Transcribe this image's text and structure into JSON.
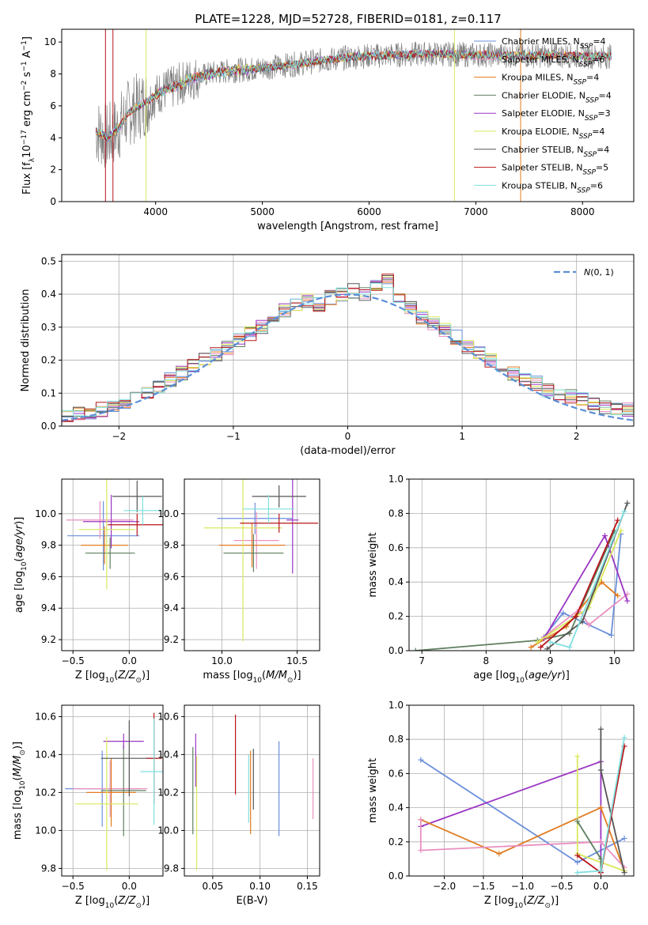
{
  "figure": {
    "title": "PLATE=1228, MJD=52728, FIBERID=0181, z=0.117"
  },
  "colors": {
    "c1": "#6a8fdb",
    "c2": "#e07b1f",
    "c3": "#e98fc0",
    "c4": "#5f7f5f",
    "c5": "#9b36c3",
    "c6": "#d9e85c",
    "c7": "#555555",
    "c8": "#b8141a",
    "c9": "#7fe0df",
    "grid": "#b0b0b0",
    "gray": "#808080",
    "dash": "#5b8fd6"
  },
  "chart_data": [
    {
      "type": "line",
      "id": "spectrum",
      "xlabel": "wavelength [Angstrom, rest frame]",
      "ylabel": "Flux [f_λ10^-17 erg cm^-2 s^-1 A^-1]",
      "xlim": [
        3120,
        8480
      ],
      "ylim": [
        0,
        10.8
      ],
      "xticks": [
        4000,
        5000,
        6000,
        7000,
        8000
      ],
      "yticks": [
        0,
        2,
        4,
        6,
        8,
        10
      ],
      "grid": false,
      "legend_position": "right",
      "continuum": {
        "x": [
          3450,
          3550,
          3650,
          3750,
          3850,
          3950,
          4050,
          4150,
          4300,
          4500,
          4700,
          4900,
          5100,
          5300,
          5500,
          5700,
          5900,
          6100,
          6300,
          6500,
          6700,
          6900,
          7100,
          7300,
          7500,
          7700,
          7900,
          8100,
          8250
        ],
        "y": [
          4.4,
          4.0,
          4.6,
          5.6,
          6.0,
          6.4,
          6.9,
          7.1,
          7.6,
          8.0,
          8.2,
          8.3,
          8.45,
          8.6,
          8.8,
          8.95,
          9.1,
          9.15,
          9.2,
          9.25,
          9.25,
          9.2,
          9.2,
          9.15,
          9.15,
          9.15,
          9.15,
          9.1,
          9.1
        ]
      },
      "series": [
        {
          "name": "Chabrier MILES",
          "nssp": "4",
          "color_key": "c1"
        },
        {
          "name": "Salpeter MILES",
          "nssp": "6",
          "color_key": "c3"
        },
        {
          "name": "Kroupa MILES",
          "nssp": "4",
          "color_key": "c2"
        },
        {
          "name": "Chabrier ELODIE",
          "nssp": "4",
          "color_key": "c4"
        },
        {
          "name": "Salpeter ELODIE",
          "nssp": "3",
          "color_key": "c5"
        },
        {
          "name": "Kroupa ELODIE",
          "nssp": "4",
          "color_key": "c6"
        },
        {
          "name": "Chabrier STELIB",
          "nssp": "4",
          "color_key": "c7"
        },
        {
          "name": "Salpeter STELIB",
          "nssp": "5",
          "color_key": "c8"
        },
        {
          "name": "Kroupa STELIB",
          "nssp": "6",
          "color_key": "c9"
        }
      ]
    },
    {
      "type": "line",
      "id": "residuals",
      "xlabel": "(data-model)/error",
      "ylabel": "Normed distribution",
      "xlim": [
        -2.5,
        2.5
      ],
      "ylim": [
        0,
        0.52
      ],
      "xticks": [
        -2,
        -1,
        0,
        1,
        2
      ],
      "yticks": [
        0.0,
        0.1,
        0.2,
        0.3,
        0.4,
        0.5
      ],
      "grid": true,
      "legend_position": "top-right",
      "reference_label": "N(0,1)",
      "histogram_centers": [
        -2.45,
        -2.35,
        -2.25,
        -2.15,
        -2.05,
        -1.95,
        -1.85,
        -1.75,
        -1.65,
        -1.55,
        -1.45,
        -1.35,
        -1.25,
        -1.15,
        -1.05,
        -0.95,
        -0.85,
        -0.75,
        -0.65,
        -0.55,
        -0.45,
        -0.35,
        -0.25,
        -0.15,
        -0.05,
        0.05,
        0.15,
        0.25,
        0.35,
        0.45,
        0.55,
        0.65,
        0.75,
        0.85,
        0.95,
        1.05,
        1.15,
        1.25,
        1.35,
        1.45,
        1.55,
        1.65,
        1.75,
        1.85,
        1.95,
        2.05,
        2.15,
        2.25,
        2.35,
        2.45
      ],
      "histogram_mean": [
        0.03,
        0.04,
        0.035,
        0.05,
        0.06,
        0.075,
        0.09,
        0.1,
        0.12,
        0.14,
        0.16,
        0.18,
        0.2,
        0.22,
        0.235,
        0.26,
        0.28,
        0.3,
        0.32,
        0.35,
        0.37,
        0.38,
        0.37,
        0.39,
        0.4,
        0.41,
        0.4,
        0.42,
        0.44,
        0.38,
        0.36,
        0.33,
        0.31,
        0.29,
        0.27,
        0.24,
        0.22,
        0.2,
        0.18,
        0.16,
        0.14,
        0.13,
        0.11,
        0.1,
        0.09,
        0.08,
        0.07,
        0.06,
        0.055,
        0.05
      ]
    },
    {
      "type": "scatter",
      "id": "age-vs-z",
      "xlabel": "Z [log10(Z/Z⊙)]",
      "ylabel": "age [log10(age/yr)]",
      "xlim": [
        -0.6,
        0.3
      ],
      "ylim": [
        9.13,
        10.22
      ],
      "xticks": [
        -0.5,
        0.0
      ],
      "yticks": [
        9.2,
        9.4,
        9.6,
        9.8,
        10.0
      ],
      "grid": true,
      "points": [
        {
          "x": -0.23,
          "y": 9.86,
          "xe": 0.32,
          "ye": 0.22,
          "color_key": "c1"
        },
        {
          "x": -0.26,
          "y": 9.96,
          "xe": 0.3,
          "ye": 0.12,
          "color_key": "c3"
        },
        {
          "x": -0.22,
          "y": 9.8,
          "xe": 0.21,
          "ye": 0.12,
          "color_key": "c2"
        },
        {
          "x": -0.17,
          "y": 9.75,
          "xe": 0.22,
          "ye": 0.1,
          "color_key": "c4"
        },
        {
          "x": -0.16,
          "y": 9.95,
          "xe": 0.25,
          "ye": 0.17,
          "color_key": "c5"
        },
        {
          "x": -0.2,
          "y": 9.9,
          "xe": 0.25,
          "ye": 0.38,
          "color_key": "c6"
        },
        {
          "x": 0.07,
          "y": 10.11,
          "xe": 0.22,
          "ye": 0.1,
          "color_key": "c7"
        },
        {
          "x": 0.07,
          "y": 9.93,
          "xe": 0.26,
          "ye": 0.07,
          "color_key": "c8"
        },
        {
          "x": 0.12,
          "y": 10.02,
          "xe": 0.17,
          "ye": 0.09,
          "color_key": "c9"
        }
      ]
    },
    {
      "type": "scatter",
      "id": "age-vs-mass",
      "xlabel": "mass [log10(M/M⊙)]",
      "ylabel": "",
      "xlim": [
        9.75,
        10.65
      ],
      "ylim": [
        9.13,
        10.22
      ],
      "xticks": [
        10.0,
        10.5
      ],
      "yticks": [
        9.2,
        9.4,
        9.6,
        9.8,
        10.0
      ],
      "grid": true,
      "points": [
        {
          "x": 10.22,
          "y": 9.97,
          "xe": 0.25,
          "ye": 0.1,
          "color_key": "c1"
        },
        {
          "x": 10.23,
          "y": 9.83,
          "xe": 0.15,
          "ye": 0.18,
          "color_key": "c3"
        },
        {
          "x": 10.2,
          "y": 9.8,
          "xe": 0.22,
          "ye": 0.14,
          "color_key": "c2"
        },
        {
          "x": 10.21,
          "y": 9.75,
          "xe": 0.2,
          "ye": 0.12,
          "color_key": "c4"
        },
        {
          "x": 10.47,
          "y": 9.96,
          "xe": 0.04,
          "ye": 0.34,
          "color_key": "c5"
        },
        {
          "x": 10.14,
          "y": 9.91,
          "xe": 0.26,
          "ye": 0.72,
          "color_key": "c6"
        },
        {
          "x": 10.38,
          "y": 10.11,
          "xe": 0.18,
          "ye": 0.07,
          "color_key": "c7"
        },
        {
          "x": 10.38,
          "y": 9.94,
          "xe": 0.26,
          "ye": 0.06,
          "color_key": "c8"
        },
        {
          "x": 10.31,
          "y": 10.03,
          "xe": 0.17,
          "ye": 0.09,
          "color_key": "c9"
        }
      ]
    },
    {
      "type": "line",
      "id": "mass-weight-vs-age",
      "xlabel": "age [log10(age/yr)]",
      "ylabel": "mass weight",
      "xlim": [
        6.8,
        10.3
      ],
      "ylim": [
        0,
        1.0
      ],
      "xticks": [
        7,
        8,
        9,
        10
      ],
      "yticks": [
        0.0,
        0.2,
        0.4,
        0.6,
        0.8,
        1.0
      ],
      "grid": true,
      "series": [
        {
          "color_key": "c4",
          "points": [
            [
              6.9,
              0.0
            ],
            [
              8.8,
              0.06
            ],
            [
              9.3,
              0.1
            ],
            [
              10.0,
              0.7
            ]
          ]
        },
        {
          "color_key": "c1",
          "points": [
            [
              8.9,
              0.08
            ],
            [
              9.2,
              0.22
            ],
            [
              9.95,
              0.09
            ],
            [
              10.1,
              0.68
            ]
          ]
        },
        {
          "color_key": "c2",
          "points": [
            [
              8.7,
              0.02
            ],
            [
              9.25,
              0.14
            ],
            [
              9.8,
              0.4
            ],
            [
              10.05,
              0.32
            ]
          ]
        },
        {
          "color_key": "c3",
          "points": [
            [
              8.9,
              0.08
            ],
            [
              9.45,
              0.24
            ],
            [
              9.6,
              0.15
            ],
            [
              10.2,
              0.33
            ]
          ]
        },
        {
          "color_key": "c5",
          "points": [
            [
              8.9,
              0.07
            ],
            [
              9.85,
              0.67
            ],
            [
              10.2,
              0.29
            ]
          ]
        },
        {
          "color_key": "c6",
          "points": [
            [
              8.8,
              0.05
            ],
            [
              9.6,
              0.25
            ],
            [
              10.1,
              0.7
            ]
          ]
        },
        {
          "color_key": "c7",
          "points": [
            [
              8.95,
              0.01
            ],
            [
              9.5,
              0.17
            ],
            [
              10.2,
              0.86
            ]
          ]
        },
        {
          "color_key": "c8",
          "points": [
            [
              8.85,
              0.02
            ],
            [
              9.4,
              0.2
            ],
            [
              10.05,
              0.76
            ]
          ]
        },
        {
          "color_key": "c9",
          "points": [
            [
              9.0,
              0.05
            ],
            [
              9.3,
              0.02
            ],
            [
              10.15,
              0.81
            ]
          ]
        }
      ]
    },
    {
      "type": "scatter",
      "id": "mass-vs-z",
      "xlabel": "Z [log10(Z/Z⊙)]",
      "ylabel": "mass [log10(M/M⊙)]",
      "xlim": [
        -0.6,
        0.3
      ],
      "ylim": [
        9.76,
        10.66
      ],
      "xticks": [
        -0.5,
        0.0
      ],
      "yticks": [
        9.8,
        10.0,
        10.2,
        10.4,
        10.6
      ],
      "grid": true,
      "points": [
        {
          "x": -0.24,
          "y": 10.22,
          "xe": 0.33,
          "ye": 0.2,
          "color_key": "c1"
        },
        {
          "x": -0.17,
          "y": 10.22,
          "xe": 0.33,
          "ye": 0.15,
          "color_key": "c3"
        },
        {
          "x": -0.16,
          "y": 10.2,
          "xe": 0.22,
          "ye": 0.18,
          "color_key": "c2"
        },
        {
          "x": -0.05,
          "y": 10.21,
          "xe": 0.2,
          "ye": 0.24,
          "color_key": "c4"
        },
        {
          "x": -0.05,
          "y": 10.47,
          "xe": 0.18,
          "ye": 0.04,
          "color_key": "c5"
        },
        {
          "x": -0.2,
          "y": 10.14,
          "xe": 0.28,
          "ye": 0.35,
          "color_key": "c6"
        },
        {
          "x": 0.0,
          "y": 10.38,
          "xe": 0.25,
          "ye": 0.2,
          "color_key": "c7"
        },
        {
          "x": 0.22,
          "y": 10.38,
          "xe": 0.07,
          "ye": 0.24,
          "color_key": "c8"
        },
        {
          "x": 0.22,
          "y": 10.31,
          "xe": 0.12,
          "ye": 0.28,
          "color_key": "c9"
        }
      ]
    },
    {
      "type": "scatter",
      "id": "mass-vs-ebv",
      "xlabel": "E(B-V)",
      "ylabel": "",
      "xlim": [
        0.02,
        0.163
      ],
      "ylim": [
        9.76,
        10.66
      ],
      "xticks": [
        0.05,
        0.1,
        0.15
      ],
      "yticks": [
        9.8,
        10.0,
        10.2,
        10.4,
        10.6
      ],
      "grid": true,
      "points": [
        {
          "x": 0.12,
          "y": 10.22,
          "xe": 0,
          "ye": 0.25,
          "color_key": "c1"
        },
        {
          "x": 0.156,
          "y": 10.22,
          "xe": 0,
          "ye": 0.16,
          "color_key": "c3"
        },
        {
          "x": 0.09,
          "y": 10.2,
          "xe": 0,
          "ye": 0.22,
          "color_key": "c2"
        },
        {
          "x": 0.029,
          "y": 10.21,
          "xe": 0,
          "ye": 0.23,
          "color_key": "c4"
        },
        {
          "x": 0.032,
          "y": 10.37,
          "xe": 0,
          "ye": 0.14,
          "color_key": "c5"
        },
        {
          "x": 0.033,
          "y": 10.09,
          "xe": 0,
          "ye": 0.3,
          "color_key": "c6"
        },
        {
          "x": 0.093,
          "y": 10.27,
          "xe": 0,
          "ye": 0.16,
          "color_key": "c7"
        },
        {
          "x": 0.074,
          "y": 10.4,
          "xe": 0,
          "ye": 0.21,
          "color_key": "c8"
        },
        {
          "x": 0.088,
          "y": 10.22,
          "xe": 0,
          "ye": 0.18,
          "color_key": "c9"
        }
      ]
    },
    {
      "type": "line",
      "id": "mass-weight-vs-z",
      "xlabel": "Z [log10(Z/Z⊙)]",
      "ylabel": "mass weight",
      "xlim": [
        -2.45,
        0.42
      ],
      "ylim": [
        0,
        1.0
      ],
      "xticks": [
        -2.0,
        -1.5,
        -1.0,
        -0.5,
        0.0
      ],
      "yticks": [
        0.0,
        0.2,
        0.4,
        0.6,
        0.8,
        1.0
      ],
      "grid": true,
      "series": [
        {
          "color_key": "c1",
          "points": [
            [
              -2.3,
              0.68
            ],
            [
              -0.3,
              0.08
            ],
            [
              0.3,
              0.22
            ]
          ]
        },
        {
          "color_key": "c5",
          "points": [
            [
              -2.3,
              0.29
            ],
            [
              0.0,
              0.67
            ],
            [
              0.0,
              0.03
            ]
          ]
        },
        {
          "color_key": "c2",
          "points": [
            [
              -2.3,
              0.33
            ],
            [
              -1.3,
              0.13
            ],
            [
              0.0,
              0.4
            ],
            [
              0.3,
              0.03
            ]
          ]
        },
        {
          "color_key": "c3",
          "points": [
            [
              -2.3,
              0.33
            ],
            [
              -2.3,
              0.15
            ],
            [
              0.0,
              0.2
            ],
            [
              0.3,
              0.05
            ]
          ]
        },
        {
          "color_key": "c6",
          "points": [
            [
              -0.3,
              0.7
            ],
            [
              -0.3,
              0.13
            ],
            [
              0.3,
              0.03
            ]
          ]
        },
        {
          "color_key": "c4",
          "points": [
            [
              -0.3,
              0.32
            ],
            [
              0.0,
              0.1
            ],
            [
              0.0,
              0.02
            ]
          ]
        },
        {
          "color_key": "c7",
          "points": [
            [
              0.0,
              0.86
            ],
            [
              0.0,
              0.62
            ],
            [
              0.3,
              0.02
            ]
          ]
        },
        {
          "color_key": "c8",
          "points": [
            [
              -0.3,
              0.12
            ],
            [
              0.0,
              0.02
            ],
            [
              0.3,
              0.76
            ]
          ]
        },
        {
          "color_key": "c9",
          "points": [
            [
              -0.3,
              0.02
            ],
            [
              0.0,
              0.03
            ],
            [
              0.3,
              0.81
            ]
          ]
        }
      ]
    }
  ]
}
